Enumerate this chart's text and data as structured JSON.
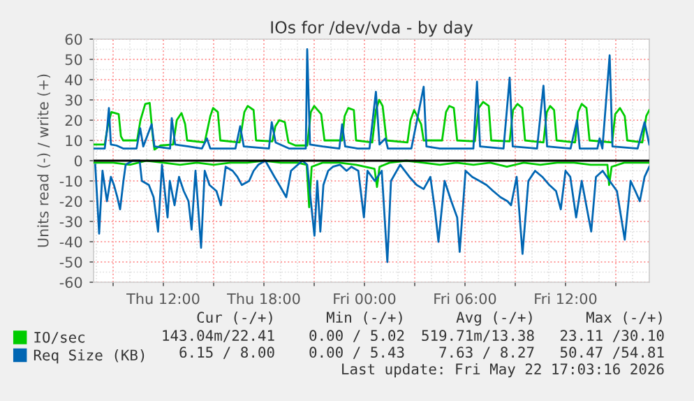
{
  "chart_data": {
    "type": "line",
    "title": "IOs for /dev/vda - by day",
    "ylabel": "Units read (-) / write (+)",
    "xlim": [
      "2026-05-21T07:50",
      "2026-05-22T17:00"
    ],
    "ylim": [
      -60,
      60
    ],
    "xticks": [
      {
        "value": "2026-05-21T09:00",
        "label": null
      },
      {
        "value": "2026-05-21T12:00",
        "label": "Thu 12:00"
      },
      {
        "value": "2026-05-21T15:00",
        "label": null
      },
      {
        "value": "2026-05-21T18:00",
        "label": "Thu 18:00"
      },
      {
        "value": "2026-05-21T21:00",
        "label": null
      },
      {
        "value": "2026-05-22T00:00",
        "label": "Fri 00:00"
      },
      {
        "value": "2026-05-22T03:00",
        "label": null
      },
      {
        "value": "2026-05-22T06:00",
        "label": "Fri 06:00"
      },
      {
        "value": "2026-05-22T09:00",
        "label": null
      },
      {
        "value": "2026-05-22T12:00",
        "label": "Fri 12:00"
      },
      {
        "value": "2026-05-22T15:00",
        "label": null
      }
    ],
    "yticks": [
      -60,
      -50,
      -40,
      -30,
      -20,
      -10,
      0,
      10,
      20,
      30,
      40,
      50,
      60
    ],
    "grid": true,
    "legend": "bottom left",
    "ref_lines": [
      {
        "axis": "y",
        "value": 0,
        "color": "#000000"
      }
    ],
    "series": [
      {
        "name": "IO/sec",
        "color": "#00cc00",
        "x": [
          "2026-05-21T07:50",
          "2026-05-21T08:30",
          "2026-05-21T08:42",
          "2026-05-21T08:54",
          "2026-05-21T09:20",
          "2026-05-21T09:28",
          "2026-05-21T09:36",
          "2026-05-21T10:26",
          "2026-05-21T10:38",
          "2026-05-21T10:55",
          "2026-05-21T11:11",
          "2026-05-21T11:22",
          "2026-05-21T11:28",
          "2026-05-21T11:50",
          "2026-05-21T12:35",
          "2026-05-21T12:48",
          "2026-05-21T13:05",
          "2026-05-21T13:18",
          "2026-05-21T13:25",
          "2026-05-21T14:28",
          "2026-05-21T14:48",
          "2026-05-21T14:58",
          "2026-05-21T15:15",
          "2026-05-21T15:24",
          "2026-05-21T16:33",
          "2026-05-21T16:50",
          "2026-05-21T17:02",
          "2026-05-21T17:23",
          "2026-05-21T17:32",
          "2026-05-21T18:30",
          "2026-05-21T18:41",
          "2026-05-21T18:55",
          "2026-05-21T19:15",
          "2026-05-21T19:28",
          "2026-05-21T19:53",
          "2026-05-21T20:35",
          "2026-05-21T20:48",
          "2026-05-21T21:00",
          "2026-05-21T21:25",
          "2026-05-21T21:37",
          "2026-05-21T22:40",
          "2026-05-21T22:49",
          "2026-05-21T23:02",
          "2026-05-21T23:22",
          "2026-05-21T23:30",
          "2026-05-22T00:28",
          "2026-05-22T00:41",
          "2026-05-22T00:53",
          "2026-05-22T01:05",
          "2026-05-22T01:19",
          "2026-05-22T02:34",
          "2026-05-22T02:45",
          "2026-05-22T02:58",
          "2026-05-22T03:23",
          "2026-05-22T03:32",
          "2026-05-22T04:38",
          "2026-05-22T04:52",
          "2026-05-22T05:04",
          "2026-05-22T05:20",
          "2026-05-22T05:32",
          "2026-05-22T06:35",
          "2026-05-22T06:49",
          "2026-05-22T07:05",
          "2026-05-22T07:25",
          "2026-05-22T07:34",
          "2026-05-22T08:40",
          "2026-05-22T08:52",
          "2026-05-22T09:08",
          "2026-05-22T09:25",
          "2026-05-22T09:35",
          "2026-05-22T10:41",
          "2026-05-22T10:53",
          "2026-05-22T11:05",
          "2026-05-22T11:19",
          "2026-05-22T11:28",
          "2026-05-22T12:34",
          "2026-05-22T12:45",
          "2026-05-22T12:58",
          "2026-05-22T13:15",
          "2026-05-22T13:26",
          "2026-05-22T14:47",
          "2026-05-22T14:58",
          "2026-05-22T15:15",
          "2026-05-22T15:32",
          "2026-05-22T15:41",
          "2026-05-22T16:35",
          "2026-05-22T16:49",
          "2026-05-22T17:00"
        ],
        "values": [
          8,
          8,
          18,
          24,
          23,
          12,
          10,
          10,
          20,
          28,
          28.5,
          12,
          5.5,
          7.5,
          8,
          20,
          23.5,
          18,
          10,
          9,
          22,
          26,
          24,
          10,
          9,
          24,
          27,
          25,
          10,
          9.5,
          17,
          20,
          19,
          9,
          7.5,
          7.5,
          24,
          27,
          23,
          10,
          10,
          22,
          26,
          25,
          10,
          9,
          25,
          30,
          27,
          10,
          9,
          20,
          25,
          18,
          10,
          10,
          24,
          27,
          26,
          10,
          9.5,
          26,
          29,
          27,
          10,
          9.5,
          25,
          28,
          26,
          10,
          9,
          24,
          27,
          25,
          10,
          9,
          24,
          28,
          26,
          10,
          9,
          23,
          26,
          22,
          10,
          9,
          22,
          25
        ]
      },
      {
        "color": "#00cc00",
        "x": [
          "2026-05-21T07:50",
          "2026-05-21T09:00",
          "2026-05-21T10:00",
          "2026-05-21T11:00",
          "2026-05-21T12:00",
          "2026-05-21T13:00",
          "2026-05-21T14:00",
          "2026-05-21T15:00",
          "2026-05-21T16:00",
          "2026-05-21T17:00",
          "2026-05-21T18:00",
          "2026-05-21T19:00",
          "2026-05-21T20:00",
          "2026-05-21T20:33",
          "2026-05-21T20:42",
          "2026-05-21T20:51",
          "2026-05-21T21:30",
          "2026-05-21T22:30",
          "2026-05-21T23:30",
          "2026-05-22T00:36",
          "2026-05-22T00:45",
          "2026-05-22T00:54",
          "2026-05-22T01:30",
          "2026-05-22T02:30",
          "2026-05-22T03:30",
          "2026-05-22T04:30",
          "2026-05-22T05:30",
          "2026-05-22T06:30",
          "2026-05-22T07:30",
          "2026-05-22T08:30",
          "2026-05-22T09:30",
          "2026-05-22T10:30",
          "2026-05-22T11:30",
          "2026-05-22T12:30",
          "2026-05-22T13:30",
          "2026-05-22T14:30",
          "2026-05-22T14:36",
          "2026-05-22T14:45",
          "2026-05-22T15:30",
          "2026-05-22T17:00"
        ],
        "values": [
          -1,
          -1,
          -2,
          0,
          -1,
          -2,
          -1,
          -2,
          -1,
          -1,
          0,
          -1,
          -1,
          -2,
          -23,
          -3,
          -1,
          -1,
          -2,
          -4,
          -13,
          -3,
          -1,
          0,
          -1,
          -2,
          -1,
          -2,
          -1,
          -3,
          -1,
          -2,
          -1,
          -1,
          -2,
          -2,
          -12,
          -3,
          -1,
          -1
        ]
      },
      {
        "name": "Req Size (KB)",
        "color": "#0066b3",
        "x": [
          "2026-05-21T07:50",
          "2026-05-21T08:30",
          "2026-05-21T08:38",
          "2026-05-21T08:45",
          "2026-05-21T08:52",
          "2026-05-21T09:12",
          "2026-05-21T09:36",
          "2026-05-21T10:24",
          "2026-05-21T10:37",
          "2026-05-21T10:48",
          "2026-05-21T11:18",
          "2026-05-21T11:28",
          "2026-05-21T12:24",
          "2026-05-21T12:30",
          "2026-05-21T12:42",
          "2026-05-21T13:30",
          "2026-05-21T14:18",
          "2026-05-21T14:36",
          "2026-05-21T14:48",
          "2026-05-21T16:18",
          "2026-05-21T16:35",
          "2026-05-21T16:48",
          "2026-05-21T18:18",
          "2026-05-21T18:28",
          "2026-05-21T18:42",
          "2026-05-21T19:30",
          "2026-05-21T20:30",
          "2026-05-21T20:35",
          "2026-05-21T20:45",
          "2026-05-21T21:30",
          "2026-05-21T22:30",
          "2026-05-21T22:40",
          "2026-05-21T22:51",
          "2026-05-21T23:36",
          "2026-05-22T00:18",
          "2026-05-22T00:41",
          "2026-05-22T00:54",
          "2026-05-22T01:15",
          "2026-05-22T01:24",
          "2026-05-22T02:48",
          "2026-05-22T03:32",
          "2026-05-22T03:42",
          "2026-05-22T04:30",
          "2026-05-22T06:30",
          "2026-05-22T06:43",
          "2026-05-22T06:54",
          "2026-05-22T08:18",
          "2026-05-22T08:40",
          "2026-05-22T08:51",
          "2026-05-22T10:18",
          "2026-05-22T10:41",
          "2026-05-22T10:54",
          "2026-05-22T12:18",
          "2026-05-22T12:41",
          "2026-05-22T12:51",
          "2026-05-22T13:54",
          "2026-05-22T14:02",
          "2026-05-22T14:12",
          "2026-05-22T14:38",
          "2026-05-22T14:48",
          "2026-05-22T16:18",
          "2026-05-22T16:43",
          "2026-05-22T17:00"
        ],
        "values": [
          6,
          6,
          15,
          26,
          8,
          7.5,
          6,
          6,
          16,
          7,
          18,
          7,
          6,
          21,
          8,
          7,
          6,
          11,
          6,
          6,
          17,
          7,
          6,
          19,
          9,
          6,
          6,
          55,
          8,
          7,
          6,
          18,
          7,
          6,
          6,
          34,
          8,
          11,
          6,
          6,
          36.5,
          7,
          6,
          6,
          39,
          7,
          6,
          41,
          7,
          6,
          37,
          7,
          6,
          20,
          6,
          6,
          11,
          6,
          52,
          7,
          6,
          19,
          8
        ]
      },
      {
        "color": "#0066b3",
        "x": [
          "2026-05-21T07:56",
          "2026-05-21T08:10",
          "2026-05-21T08:22",
          "2026-05-21T08:38",
          "2026-05-21T08:52",
          "2026-05-21T09:03",
          "2026-05-21T09:15",
          "2026-05-21T09:25",
          "2026-05-21T09:37",
          "2026-05-21T09:45",
          "2026-05-21T10:10",
          "2026-05-21T10:35",
          "2026-05-21T10:43",
          "2026-05-21T11:08",
          "2026-05-21T11:25",
          "2026-05-21T11:41",
          "2026-05-21T11:55",
          "2026-05-21T12:15",
          "2026-05-21T12:23",
          "2026-05-21T12:40",
          "2026-05-21T12:56",
          "2026-05-21T13:13",
          "2026-05-21T13:30",
          "2026-05-21T13:41",
          "2026-05-21T13:55",
          "2026-05-21T14:15",
          "2026-05-21T14:28",
          "2026-05-21T14:45",
          "2026-05-21T15:10",
          "2026-05-21T15:26",
          "2026-05-21T15:43",
          "2026-05-21T16:08",
          "2026-05-21T16:25",
          "2026-05-21T16:41",
          "2026-05-21T17:07",
          "2026-05-21T17:23",
          "2026-05-21T17:40",
          "2026-05-21T18:05",
          "2026-05-21T18:38",
          "2026-05-21T18:55",
          "2026-05-21T19:20",
          "2026-05-21T19:37",
          "2026-05-21T19:53",
          "2026-05-21T20:18",
          "2026-05-21T20:35",
          "2026-05-21T20:48",
          "2026-05-21T21:01",
          "2026-05-21T21:11",
          "2026-05-21T21:22",
          "2026-05-21T21:33",
          "2026-05-21T21:50",
          "2026-05-21T22:07",
          "2026-05-21T22:32",
          "2026-05-21T22:56",
          "2026-05-21T23:13",
          "2026-05-21T23:38",
          "2026-05-21T23:58",
          "2026-05-22T00:11",
          "2026-05-22T00:37",
          "2026-05-22T01:02",
          "2026-05-22T01:22",
          "2026-05-22T01:35",
          "2026-05-22T02:08",
          "2026-05-22T02:41",
          "2026-05-22T03:07",
          "2026-05-22T03:32",
          "2026-05-22T03:56",
          "2026-05-22T04:13",
          "2026-05-22T04:25",
          "2026-05-22T04:47",
          "2026-05-22T05:11",
          "2026-05-22T05:32",
          "2026-05-22T05:41",
          "2026-05-22T06:02",
          "2026-05-22T06:26",
          "2026-05-22T06:52",
          "2026-05-22T07:17",
          "2026-05-22T07:41",
          "2026-05-22T08:07",
          "2026-05-22T08:32",
          "2026-05-22T08:45",
          "2026-05-22T09:05",
          "2026-05-22T09:26",
          "2026-05-22T09:47",
          "2026-05-22T10:11",
          "2026-05-22T10:37",
          "2026-05-22T11:02",
          "2026-05-22T11:26",
          "2026-05-22T11:43",
          "2026-05-22T12:00",
          "2026-05-22T12:17",
          "2026-05-22T12:38",
          "2026-05-22T12:58",
          "2026-05-22T13:32",
          "2026-05-22T13:49",
          "2026-05-22T14:13",
          "2026-05-22T14:38",
          "2026-05-22T15:04",
          "2026-05-22T15:32",
          "2026-05-22T15:53",
          "2026-05-22T16:10",
          "2026-05-22T16:26",
          "2026-05-22T16:43",
          "2026-05-22T17:00"
        ],
        "values": [
          -2,
          -36,
          -5,
          -20,
          -8,
          -12,
          -18,
          -24,
          -10,
          -2,
          0,
          0,
          -10,
          -12,
          -18,
          -35,
          -2,
          -28,
          -10,
          -22,
          -8,
          -15,
          -20,
          -34,
          -5,
          -43,
          -5,
          -12,
          -15,
          -22,
          -3,
          -5,
          -8,
          -12,
          -10,
          -5,
          -2,
          0,
          -8,
          -12,
          -18,
          -5,
          -3,
          0,
          -2,
          -20,
          -37,
          -10,
          -35,
          -12,
          -5,
          -3,
          -2,
          -5,
          -3,
          -5,
          -28,
          -5,
          -10,
          -5,
          -50,
          -10,
          -2,
          -8,
          -12,
          -14,
          -8,
          -25,
          -40,
          -10,
          -20,
          -28,
          -45,
          -5,
          -8,
          -10,
          -12,
          -15,
          -18,
          -20,
          -22,
          -8,
          -46,
          -10,
          -5,
          -8,
          -12,
          -15,
          -24,
          -5,
          -8,
          -28,
          -10,
          -35,
          -8,
          -5,
          -10,
          -15,
          -39,
          -10,
          -15,
          -20,
          -8,
          -3
        ]
      }
    ],
    "annotations": [
      "Cur (-/+)",
      "Min (-/+)",
      "Avg (-/+)",
      "Max (-/+)",
      "143.04m/22.41",
      "0.00 / 5.02",
      "519.71m/13.38",
      "23.11 /30.10",
      "6.15 / 8.00",
      "0.00 / 5.43",
      "7.63 / 8.27",
      "50.47 /54.81",
      "Last update: Fri May 22 17:03:16 2026"
    ]
  }
}
